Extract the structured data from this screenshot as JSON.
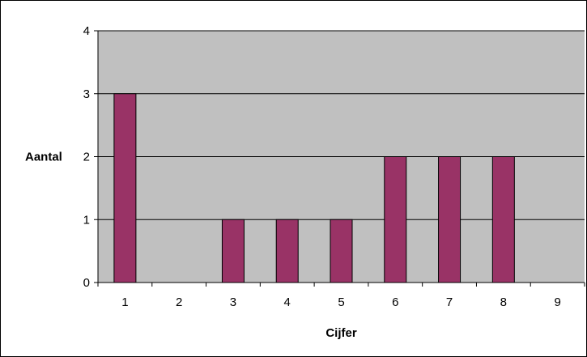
{
  "chart_data": {
    "type": "bar",
    "title": "",
    "xlabel": "Cijfer",
    "ylabel": "Aantal",
    "categories": [
      "1",
      "2",
      "3",
      "4",
      "5",
      "6",
      "7",
      "8",
      "9"
    ],
    "values": [
      3,
      0,
      1,
      1,
      1,
      2,
      2,
      2,
      0
    ],
    "ylim": [
      0,
      4
    ],
    "yticks": [
      "0",
      "1",
      "2",
      "3",
      "4"
    ],
    "grid": true,
    "legend": "none",
    "colors": {
      "bar": "#993366",
      "plot_background": "#c0c0c0",
      "gridline": "#000000"
    }
  }
}
